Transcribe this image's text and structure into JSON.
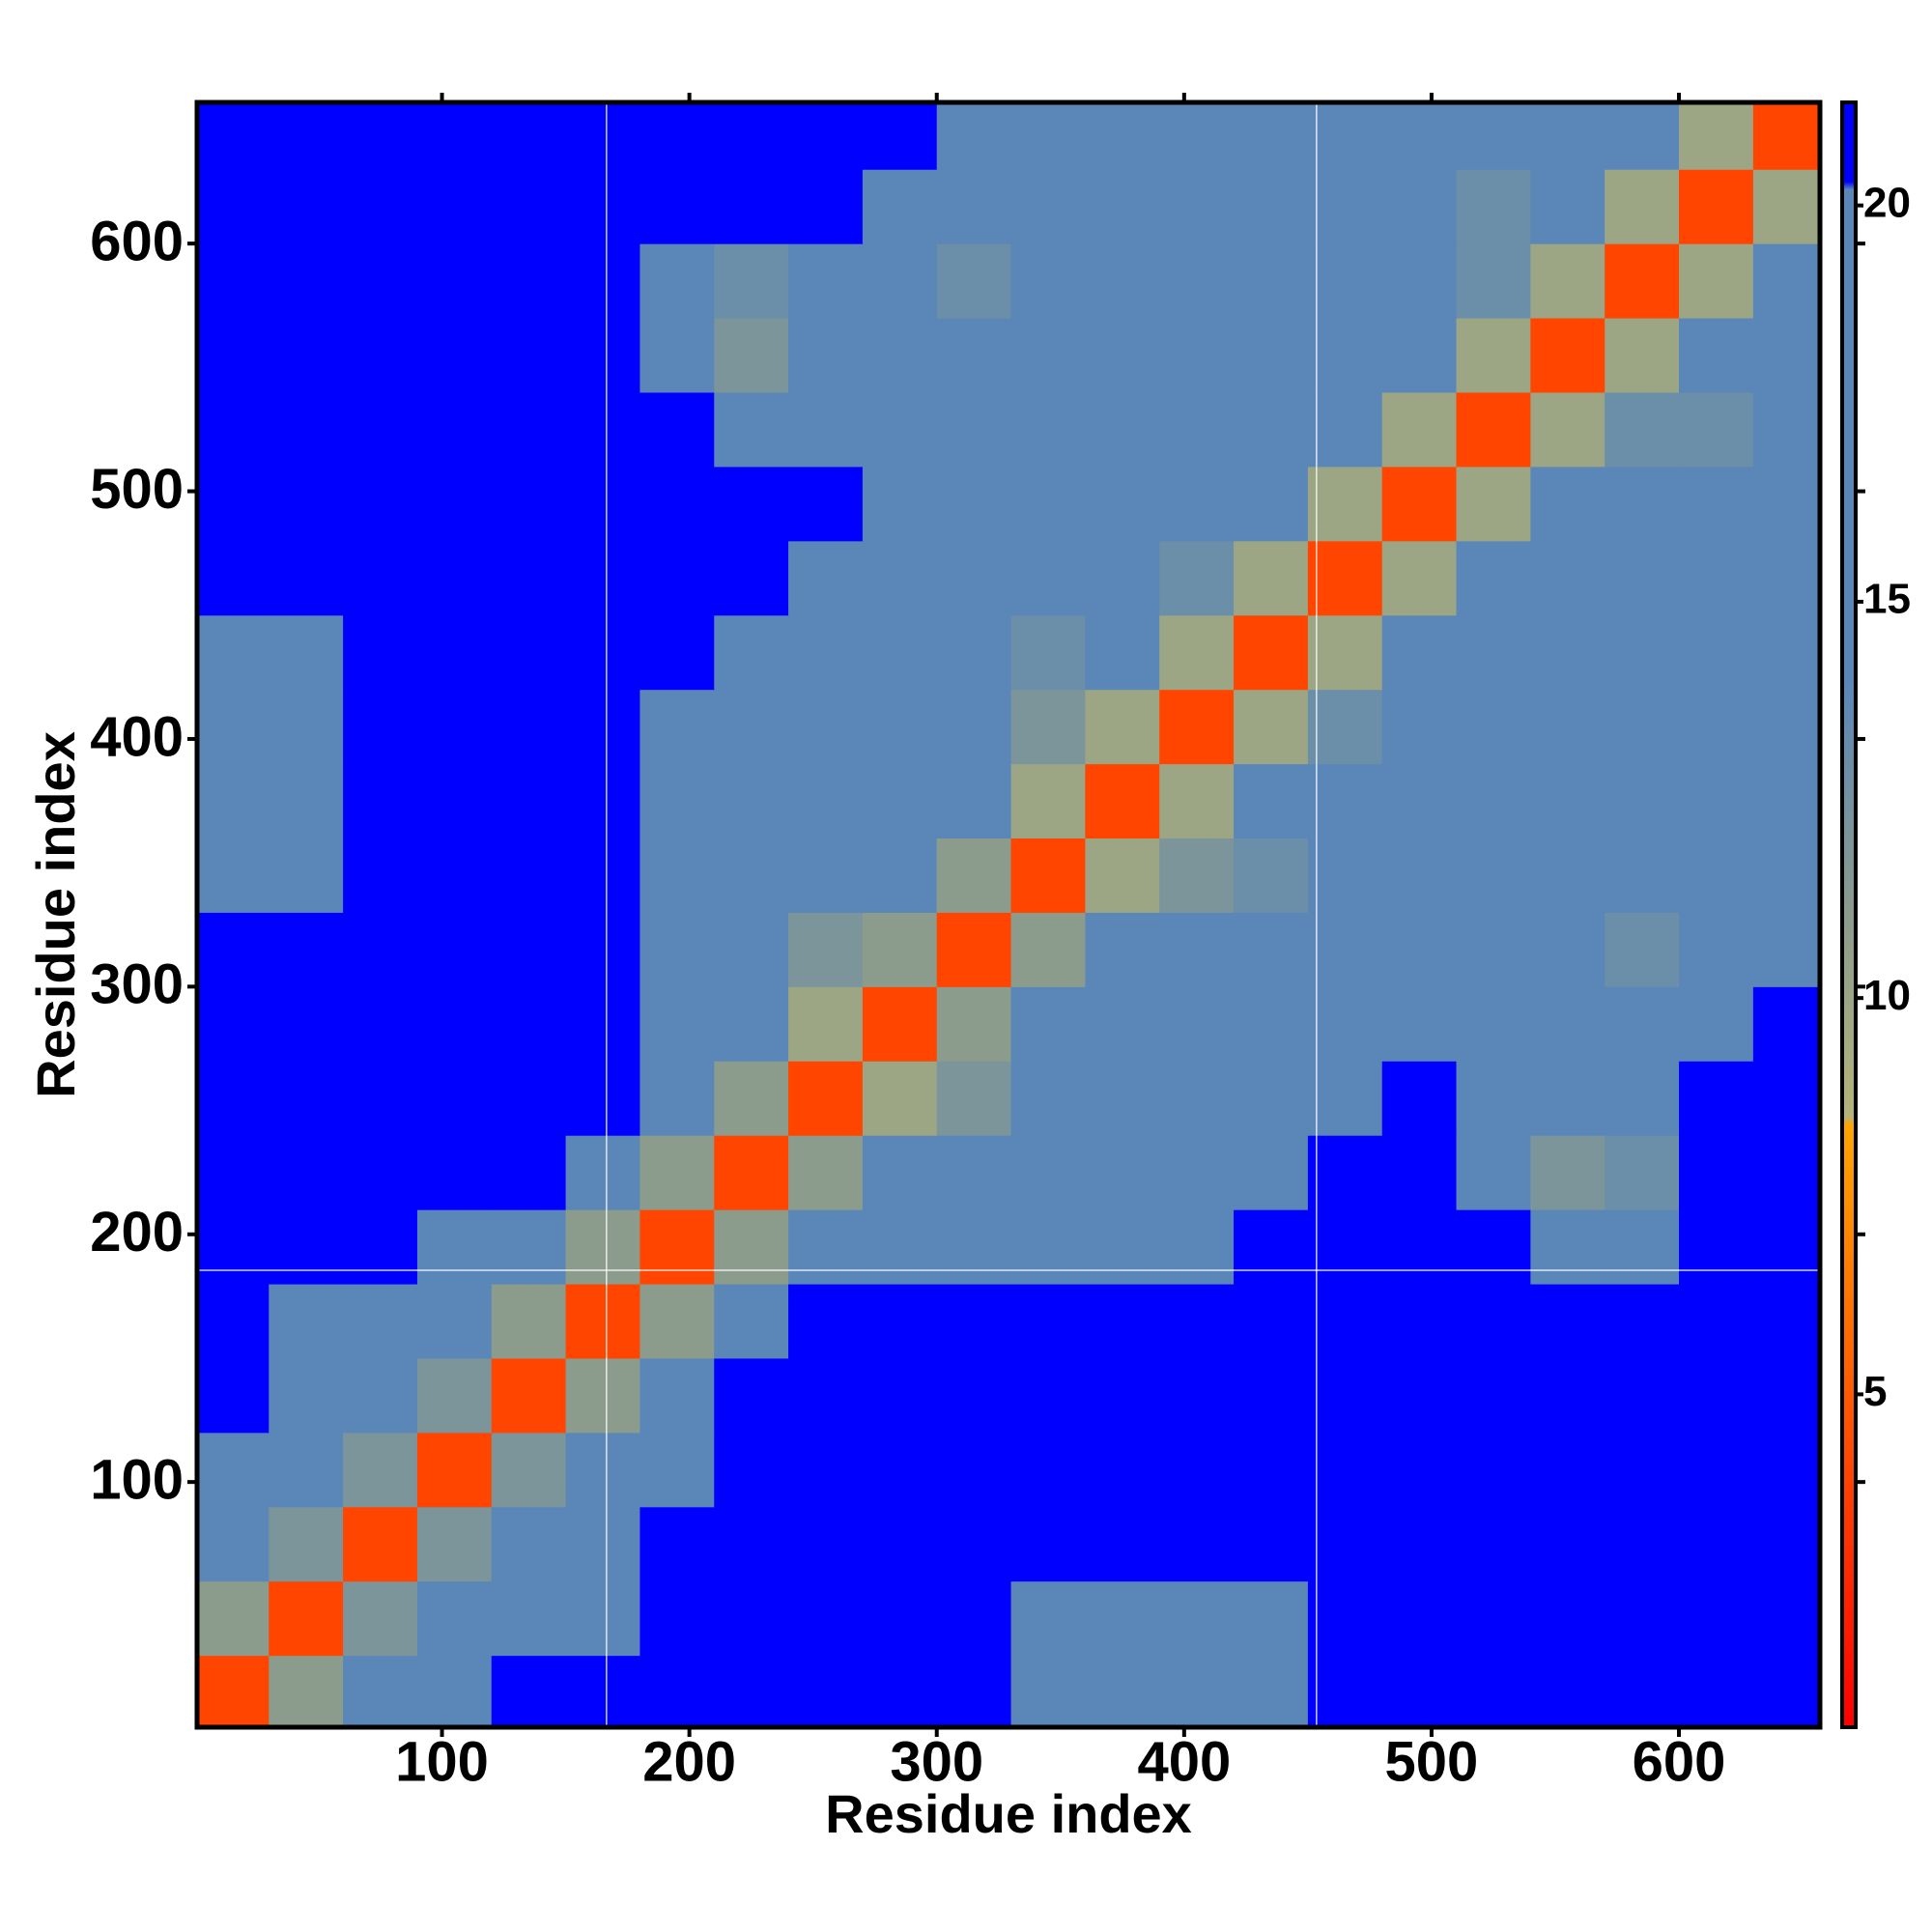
{
  "chart_data": {
    "type": "heatmap",
    "xlabel": "Residue index",
    "ylabel": "Residue index",
    "xlim": [
      1,
      657
    ],
    "ylim": [
      1,
      657
    ],
    "xticks": [
      100,
      200,
      300,
      400,
      500,
      600
    ],
    "yticks": [
      100,
      200,
      300,
      400,
      500,
      600
    ],
    "bin_edges": [
      0,
      30,
      60,
      90,
      120,
      150,
      180,
      210,
      240,
      270,
      300,
      330,
      360,
      390,
      420,
      450,
      480,
      510,
      540,
      570,
      600,
      630,
      660
    ],
    "z": [
      [
        4,
        11,
        20,
        20,
        21,
        21,
        21,
        21,
        21,
        21,
        21,
        19,
        18,
        18,
        17,
        21,
        21,
        21,
        21,
        21,
        21,
        21
      ],
      [
        11,
        4,
        12,
        18,
        18,
        19,
        21,
        21,
        21,
        21,
        21,
        15,
        14,
        14,
        15,
        21,
        21,
        21,
        21,
        21,
        21,
        21
      ],
      [
        20,
        12,
        4,
        12,
        17,
        17,
        21,
        21,
        21,
        21,
        21,
        21,
        21,
        21,
        21,
        21,
        21,
        21,
        21,
        21,
        21,
        21
      ],
      [
        20,
        18,
        12,
        4,
        12,
        16,
        20,
        21,
        21,
        21,
        21,
        21,
        21,
        21,
        21,
        21,
        21,
        21,
        21,
        21,
        21,
        21
      ],
      [
        21,
        18,
        17,
        12,
        4,
        11,
        19,
        21,
        21,
        21,
        21,
        21,
        21,
        21,
        21,
        21,
        21,
        21,
        21,
        21,
        21,
        21
      ],
      [
        21,
        19,
        17,
        16,
        11,
        4,
        11,
        20,
        21,
        21,
        21,
        21,
        21,
        21,
        21,
        21,
        21,
        21,
        21,
        21,
        21,
        21
      ],
      [
        21,
        21,
        21,
        20,
        19,
        11,
        4,
        11,
        16,
        17,
        17,
        18,
        19,
        19,
        21,
        21,
        21,
        21,
        16,
        17,
        21,
        21
      ],
      [
        21,
        21,
        21,
        21,
        21,
        20,
        11,
        4,
        11,
        14,
        16,
        18,
        18,
        18,
        19,
        21,
        21,
        20,
        12,
        13,
        21,
        21
      ],
      [
        21,
        21,
        21,
        21,
        21,
        21,
        16,
        11,
        4,
        10,
        12,
        17,
        17,
        18,
        18,
        19,
        21,
        19,
        17,
        16,
        21,
        21
      ],
      [
        21,
        21,
        21,
        21,
        21,
        21,
        17,
        14,
        10,
        4,
        11,
        15,
        17,
        17,
        18,
        18,
        17,
        17,
        18,
        19,
        19,
        21
      ],
      [
        21,
        21,
        21,
        21,
        21,
        21,
        17,
        16,
        12,
        11,
        4,
        11,
        15,
        17,
        17,
        17,
        17,
        17,
        17,
        13,
        16,
        18
      ],
      [
        19,
        15,
        21,
        21,
        21,
        21,
        18,
        18,
        17,
        15,
        11,
        4,
        10,
        12,
        13,
        17,
        17,
        15,
        17,
        17,
        17,
        19
      ],
      [
        18,
        14,
        21,
        21,
        21,
        21,
        19,
        18,
        17,
        17,
        15,
        10,
        4,
        10,
        14,
        17,
        18,
        17,
        17,
        17,
        15,
        17
      ],
      [
        18,
        14,
        21,
        21,
        21,
        21,
        19,
        18,
        18,
        17,
        17,
        12,
        10,
        4,
        10,
        13,
        14,
        17,
        17,
        14,
        17,
        18
      ],
      [
        17,
        15,
        21,
        21,
        21,
        21,
        21,
        19,
        18,
        18,
        17,
        13,
        14,
        10,
        4,
        10,
        14,
        17,
        17,
        17,
        16,
        18
      ],
      [
        21,
        21,
        21,
        21,
        21,
        21,
        21,
        21,
        19,
        18,
        17,
        17,
        17,
        13,
        10,
        4,
        10,
        14,
        17,
        17,
        17,
        18
      ],
      [
        21,
        21,
        21,
        21,
        21,
        21,
        21,
        21,
        21,
        17,
        17,
        17,
        18,
        14,
        14,
        10,
        4,
        10,
        14,
        17,
        15,
        18
      ],
      [
        21,
        21,
        21,
        21,
        21,
        21,
        21,
        20,
        19,
        17,
        17,
        15,
        17,
        17,
        17,
        14,
        10,
        4,
        10,
        13,
        13,
        18
      ],
      [
        21,
        21,
        21,
        21,
        21,
        21,
        16,
        12,
        17,
        18,
        17,
        17,
        17,
        17,
        17,
        17,
        14,
        10,
        4,
        10,
        14,
        17
      ],
      [
        21,
        21,
        21,
        21,
        21,
        21,
        17,
        13,
        16,
        19,
        13,
        17,
        17,
        14,
        17,
        17,
        17,
        13,
        10,
        4,
        10,
        15
      ],
      [
        21,
        21,
        21,
        21,
        21,
        21,
        21,
        21,
        21,
        19,
        16,
        17,
        15,
        17,
        16,
        17,
        15,
        13,
        14,
        10,
        4,
        10
      ],
      [
        21,
        21,
        21,
        21,
        21,
        21,
        21,
        21,
        21,
        21,
        18,
        19,
        17,
        18,
        18,
        18,
        18,
        18,
        17,
        15,
        10,
        4
      ]
    ],
    "boundaries": {
      "x": [
        166.5,
        453.5
      ],
      "y": [
        185.5
      ]
    },
    "colorbar": {
      "lim": [
        0.8,
        21.3
      ],
      "ticks": [
        5,
        10,
        15,
        20
      ],
      "colorscale": [
        {
          "value": 0.8,
          "color": "#ff0000"
        },
        {
          "value": 5,
          "color": "#ff5a00"
        },
        {
          "value": 8.4,
          "color": "#ffa500"
        },
        {
          "value": 8.5,
          "color": "#b4b478"
        },
        {
          "value": 11,
          "color": "#8c9c8c"
        },
        {
          "value": 14,
          "color": "#5a87b8"
        },
        {
          "value": 20.2,
          "color": "#5a87b8"
        },
        {
          "value": 20.3,
          "color": "#0000ff"
        },
        {
          "value": 21.3,
          "color": "#0000ff"
        }
      ]
    }
  }
}
